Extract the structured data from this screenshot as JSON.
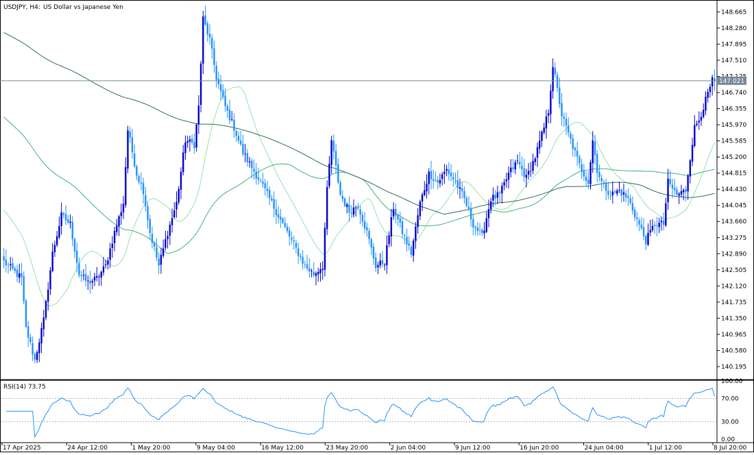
{
  "header": {
    "symbol": "USDJPY, H4:",
    "description": "US Dollar vs Japanese Yen"
  },
  "rsi_panel": {
    "label": "RSI(14) 73.75"
  },
  "colors": {
    "background": "#ffffff",
    "axis": "#000000",
    "bull_candle": "#0000cd",
    "bear_candle": "#1e90ff",
    "ma_fast": "#98e0a8",
    "ma_mid": "#3cb371",
    "ma_slow": "#2e6b4f",
    "rsi_line": "#1e90ff",
    "rsi_level": "#b0b0b0",
    "current_price_line": "#778899",
    "current_price_tag": "#778899"
  },
  "chart_data": [
    {
      "type": "candlestick",
      "title": "USDJPY, H4:  US Dollar vs Japanese Yen",
      "ylim": [
        139.9,
        148.9
      ],
      "y_ticks": [
        "148.665",
        "148.280",
        "147.895",
        "147.510",
        "147.125",
        "146.740",
        "146.355",
        "145.970",
        "145.585",
        "145.200",
        "144.815",
        "144.430",
        "144.045",
        "143.660",
        "143.275",
        "142.890",
        "142.505",
        "142.120",
        "141.735",
        "141.350",
        "140.965",
        "140.580",
        "140.195"
      ],
      "current_price": "147.021",
      "x_ticks": [
        "17 Apr 2025",
        "24 Apr 12:00",
        "1 May 20:00",
        "9 May 04:00",
        "16 May 12:00",
        "23 May 20:00",
        "2 Jun 04:00",
        "9 Jun 12:00",
        "16 Jun 20:00",
        "24 Jun 04:00",
        "1 Jul 12:00",
        "8 Jul 20:00"
      ],
      "price_anchors": [
        [
          0,
          142.7
        ],
        [
          8,
          142.3
        ],
        [
          10,
          141.1
        ],
        [
          14,
          140.35
        ],
        [
          18,
          141.3
        ],
        [
          22,
          142.9
        ],
        [
          26,
          143.8
        ],
        [
          30,
          143.6
        ],
        [
          34,
          142.4
        ],
        [
          38,
          142.2
        ],
        [
          42,
          142.3
        ],
        [
          46,
          142.6
        ],
        [
          50,
          143.4
        ],
        [
          54,
          144.1
        ],
        [
          56,
          145.85
        ],
        [
          60,
          144.8
        ],
        [
          63,
          144.4
        ],
        [
          66,
          143.4
        ],
        [
          70,
          142.6
        ],
        [
          74,
          143.4
        ],
        [
          78,
          144.1
        ],
        [
          82,
          145.6
        ],
        [
          86,
          145.5
        ],
        [
          88,
          146.4
        ],
        [
          90,
          148.5
        ],
        [
          93,
          148.0
        ],
        [
          96,
          147.1
        ],
        [
          100,
          146.4
        ],
        [
          104,
          145.9
        ],
        [
          108,
          145.3
        ],
        [
          112,
          144.95
        ],
        [
          116,
          144.6
        ],
        [
          120,
          144.2
        ],
        [
          124,
          143.8
        ],
        [
          128,
          143.4
        ],
        [
          132,
          143.0
        ],
        [
          136,
          142.6
        ],
        [
          140,
          142.4
        ],
        [
          144,
          142.6
        ],
        [
          146,
          144.4
        ],
        [
          148,
          145.6
        ],
        [
          152,
          144.3
        ],
        [
          156,
          143.9
        ],
        [
          160,
          144.05
        ],
        [
          164,
          143.4
        ],
        [
          168,
          142.6
        ],
        [
          172,
          142.7
        ],
        [
          176,
          144.0
        ],
        [
          180,
          143.4
        ],
        [
          184,
          142.9
        ],
        [
          188,
          144.1
        ],
        [
          192,
          144.8
        ],
        [
          196,
          144.6
        ],
        [
          200,
          144.9
        ],
        [
          204,
          144.6
        ],
        [
          208,
          144.2
        ],
        [
          212,
          143.6
        ],
        [
          216,
          143.3
        ],
        [
          220,
          144.2
        ],
        [
          224,
          144.3
        ],
        [
          228,
          144.8
        ],
        [
          232,
          145.1
        ],
        [
          236,
          144.7
        ],
        [
          240,
          145.2
        ],
        [
          244,
          145.9
        ],
        [
          246,
          146.3
        ],
        [
          248,
          147.4
        ],
        [
          250,
          146.8
        ],
        [
          252,
          146.2
        ],
        [
          256,
          145.6
        ],
        [
          260,
          145.0
        ],
        [
          264,
          144.6
        ],
        [
          266,
          145.6
        ],
        [
          268,
          144.9
        ],
        [
          270,
          144.6
        ],
        [
          274,
          144.3
        ],
        [
          278,
          144.4
        ],
        [
          282,
          144.2
        ],
        [
          286,
          143.7
        ],
        [
          290,
          143.2
        ],
        [
          294,
          143.6
        ],
        [
          298,
          143.6
        ],
        [
          300,
          144.6
        ],
        [
          304,
          144.3
        ],
        [
          308,
          144.4
        ],
        [
          310,
          145.2
        ],
        [
          312,
          145.9
        ],
        [
          314,
          146.1
        ],
        [
          318,
          146.7
        ],
        [
          320,
          147.02
        ]
      ],
      "series": [
        {
          "name": "",
          "period": 20
        },
        {
          "name": "",
          "period": 75
        },
        {
          "name": "",
          "period": 200
        }
      ],
      "grid": false
    },
    {
      "type": "line",
      "title": "RSI(14) 73.75",
      "ylim": [
        0,
        100
      ],
      "y_ticks": [
        "100.00",
        "70.00",
        "30.00",
        "0.00"
      ],
      "levels": [
        70,
        30
      ],
      "last_value": 73.75
    }
  ]
}
